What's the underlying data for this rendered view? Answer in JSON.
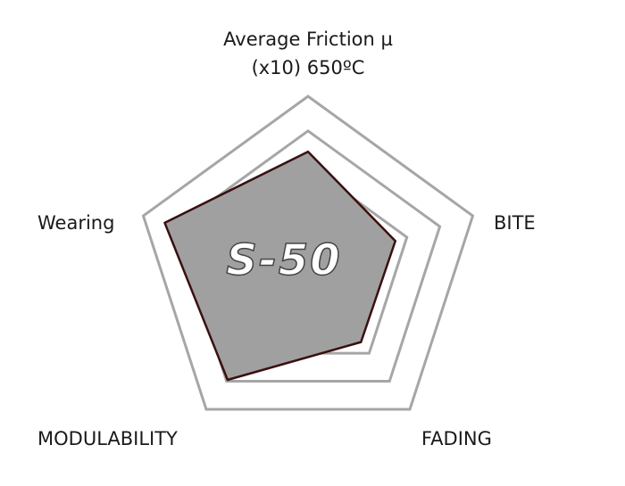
{
  "chart_data": {
    "type": "radar",
    "categories": [
      "Average Friction µ (x10) 650ºC",
      "BITE",
      "FADING",
      "MODULABILITY",
      "Wearing"
    ],
    "values": [
      6.8,
      5.3,
      5.2,
      7.9,
      8.7
    ],
    "rlim": [
      0,
      10
    ],
    "rticks": [
      6,
      8,
      10
    ],
    "color": "#a0a0a0",
    "edge_color": "#3a1010",
    "grid_color": "#a6a6a6",
    "center_label": "S-50"
  }
}
